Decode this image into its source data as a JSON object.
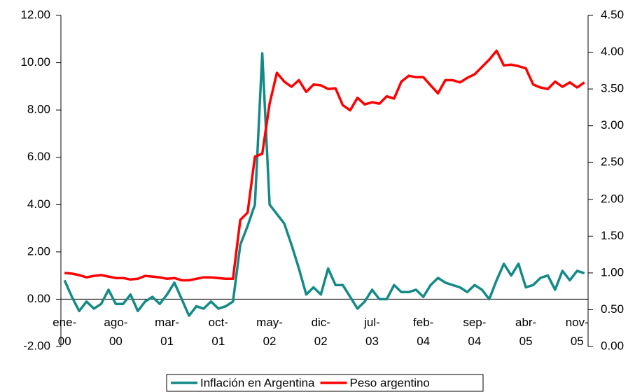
{
  "chart_data": {
    "type": "line",
    "categories": [
      "ene-00",
      null,
      null,
      null,
      null,
      null,
      null,
      "ago-00",
      null,
      null,
      null,
      null,
      null,
      null,
      "mar-01",
      null,
      null,
      null,
      null,
      null,
      null,
      "oct-01",
      null,
      null,
      null,
      null,
      null,
      null,
      "may-02",
      null,
      null,
      null,
      null,
      null,
      null,
      "dic-02",
      null,
      null,
      null,
      null,
      null,
      null,
      "jul-03",
      null,
      null,
      null,
      null,
      null,
      null,
      "feb-04",
      null,
      null,
      null,
      null,
      null,
      null,
      "sep-04",
      null,
      null,
      null,
      null,
      null,
      null,
      "abr-05",
      null,
      null,
      null,
      null,
      null,
      null,
      "nov-05",
      null
    ],
    "series": [
      {
        "name": "Inflación en Argentina",
        "color": "#138a87",
        "axis": "y",
        "values": [
          0.8,
          0.1,
          -0.5,
          -0.1,
          -0.4,
          -0.2,
          0.4,
          -0.2,
          -0.2,
          0.2,
          -0.5,
          -0.1,
          0.1,
          -0.2,
          0.2,
          0.7,
          0.0,
          -0.7,
          -0.3,
          -0.4,
          -0.1,
          -0.4,
          -0.3,
          -0.1,
          2.3,
          3.1,
          4.0,
          10.4,
          4.0,
          3.6,
          3.2,
          2.3,
          1.3,
          0.2,
          0.5,
          0.2,
          1.3,
          0.6,
          0.6,
          0.1,
          -0.4,
          -0.1,
          0.4,
          0.0,
          0.0,
          0.6,
          0.3,
          0.3,
          0.4,
          0.1,
          0.6,
          0.9,
          0.7,
          0.6,
          0.5,
          0.3,
          0.6,
          0.4,
          0.0,
          0.8,
          1.5,
          1.0,
          1.5,
          0.5,
          0.6,
          0.9,
          1.0,
          0.4,
          1.2,
          0.8,
          1.2,
          1.1
        ]
      },
      {
        "name": "Peso argentino",
        "color": "#ff0000",
        "axis": "y2",
        "values": [
          1.0,
          0.99,
          0.97,
          0.94,
          0.96,
          0.97,
          0.95,
          0.93,
          0.93,
          0.91,
          0.92,
          0.96,
          0.95,
          0.94,
          0.92,
          0.93,
          0.9,
          0.9,
          0.92,
          0.94,
          0.94,
          0.93,
          0.92,
          0.92,
          1.72,
          1.82,
          2.58,
          2.62,
          3.3,
          3.72,
          3.6,
          3.53,
          3.62,
          3.46,
          3.56,
          3.55,
          3.5,
          3.51,
          3.28,
          3.21,
          3.38,
          3.29,
          3.32,
          3.3,
          3.4,
          3.37,
          3.6,
          3.68,
          3.66,
          3.66,
          3.55,
          3.44,
          3.62,
          3.62,
          3.59,
          3.65,
          3.7,
          3.8,
          3.9,
          4.02,
          3.82,
          3.83,
          3.81,
          3.78,
          3.56,
          3.52,
          3.5,
          3.6,
          3.53,
          3.59,
          3.52,
          3.59
        ]
      }
    ],
    "ylim": [
      -2,
      12
    ],
    "yticks": [
      {
        "value": -2,
        "label": "-2.00"
      },
      {
        "value": 0,
        "label": "0.00"
      },
      {
        "value": 2,
        "label": "2.00"
      },
      {
        "value": 4,
        "label": "4.00"
      },
      {
        "value": 6,
        "label": "6.00"
      },
      {
        "value": 8,
        "label": "8.00"
      },
      {
        "value": 10,
        "label": "10.00"
      },
      {
        "value": 12,
        "label": "12.00"
      }
    ],
    "y2lim": [
      0,
      4.5
    ],
    "y2ticks": [
      {
        "value": 0,
        "label": "0.00"
      },
      {
        "value": 0.5,
        "label": "0.50"
      },
      {
        "value": 1,
        "label": "1.00"
      },
      {
        "value": 1.5,
        "label": "1.50"
      },
      {
        "value": 2,
        "label": "2.00"
      },
      {
        "value": 2.5,
        "label": "2.50"
      },
      {
        "value": 3,
        "label": "3.00"
      },
      {
        "value": 3.5,
        "label": "3.50"
      },
      {
        "value": 4,
        "label": "4.00"
      },
      {
        "value": 4.5,
        "label": "4.50"
      }
    ],
    "grid": false,
    "legend": "bottom"
  }
}
